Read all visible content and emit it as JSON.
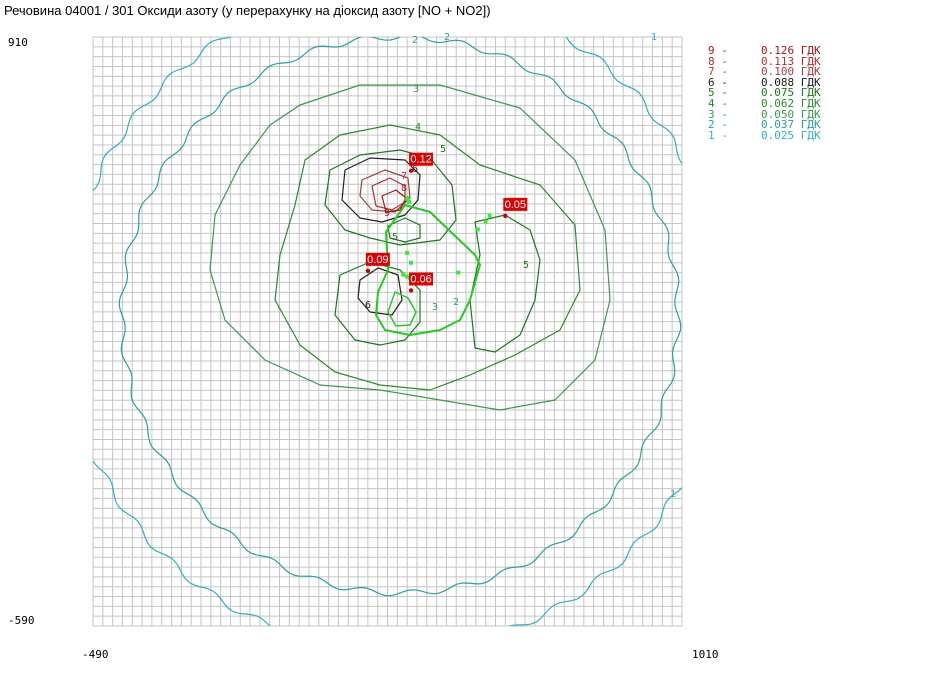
{
  "title": "Речовина 04001 / 301 Оксиди азоту (у перерахунку на діоксид азоту [NO + NO2])",
  "chart_data": {
    "type": "contour",
    "xlim": [
      -490,
      1010
    ],
    "ylim": [
      -590,
      910
    ],
    "tick_labels": {
      "x_min": "-490",
      "x_max": "1010",
      "y_max": "910",
      "y_min": "-590"
    },
    "grid": true,
    "legend_position": "right",
    "levels": [
      {
        "index": "9",
        "value": "0.126",
        "unit": "ГДК",
        "color": "#a01818"
      },
      {
        "index": "8",
        "value": "0.113",
        "unit": "ГДК",
        "color": "#b03030"
      },
      {
        "index": "7",
        "value": "0.100",
        "unit": "ГДК",
        "color": "#a04040"
      },
      {
        "index": "6",
        "value": "0.088",
        "unit": "ГДК",
        "color": "#202020"
      },
      {
        "index": "5",
        "value": "0.075",
        "unit": "ГДК",
        "color": "#1a7a1a"
      },
      {
        "index": "4",
        "value": "0.062",
        "unit": "ГДК",
        "color": "#2a8a2a"
      },
      {
        "index": "3",
        "value": "0.050",
        "unit": "ГДК",
        "color": "#3a9a4a"
      },
      {
        "index": "2",
        "value": "0.037",
        "unit": "ГДК",
        "color": "#2aa0a0"
      },
      {
        "index": "1",
        "value": "0.025",
        "unit": "ГДК",
        "color": "#30b0c0"
      }
    ],
    "maxima": [
      {
        "label": "0.12",
        "x": 320,
        "y": 600
      },
      {
        "label": "0.05",
        "x": 560,
        "y": 485
      },
      {
        "label": "0.09",
        "x": 210,
        "y": 345
      },
      {
        "label": "0.06",
        "x": 320,
        "y": 295
      }
    ],
    "sources": [
      {
        "x": 310,
        "y": 500
      },
      {
        "x": 315,
        "y": 490
      },
      {
        "x": 510,
        "y": 440
      },
      {
        "x": 520,
        "y": 455
      },
      {
        "x": 310,
        "y": 360
      },
      {
        "x": 320,
        "y": 335
      },
      {
        "x": 300,
        "y": 305
      },
      {
        "x": 310,
        "y": 300
      },
      {
        "x": 330,
        "y": 290
      },
      {
        "x": 440,
        "y": 310
      },
      {
        "x": 490,
        "y": 420
      }
    ]
  }
}
